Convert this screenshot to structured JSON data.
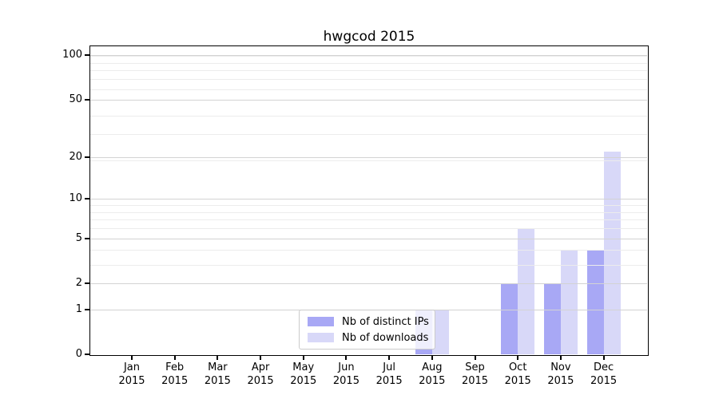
{
  "chart_data": {
    "type": "bar",
    "title": "hwgcod 2015",
    "categories": [
      "Jan",
      "Feb",
      "Mar",
      "Apr",
      "May",
      "Jun",
      "Jul",
      "Aug",
      "Sep",
      "Oct",
      "Nov",
      "Dec"
    ],
    "category_year": "2015",
    "series": [
      {
        "name": "Nb of distinct IPs",
        "color": "#a8a8f5",
        "values": [
          0,
          0,
          0,
          0,
          0,
          0,
          0,
          1,
          0,
          2,
          2,
          4
        ]
      },
      {
        "name": "Nb of downloads",
        "color": "#d8d8f8",
        "values": [
          0,
          0,
          0,
          0,
          0,
          0,
          0,
          1,
          0,
          6,
          4,
          22
        ]
      }
    ],
    "y_axis": {
      "scale": "log1p",
      "ticks": [
        0,
        1,
        2,
        5,
        10,
        20,
        50,
        100
      ],
      "minor_gridlines": [
        3,
        4,
        6,
        7,
        8,
        9,
        19,
        29,
        39,
        59,
        69,
        79,
        89,
        99
      ],
      "range_min": 0,
      "range_top_value": 117
    },
    "grid": true,
    "legend_position": "lower-center"
  },
  "colors": {
    "major_grid": "#d3d3d3",
    "minor_grid": "#ececec",
    "spine": "#000000",
    "text": "#000000",
    "legend_border": "#cbcbcb"
  }
}
